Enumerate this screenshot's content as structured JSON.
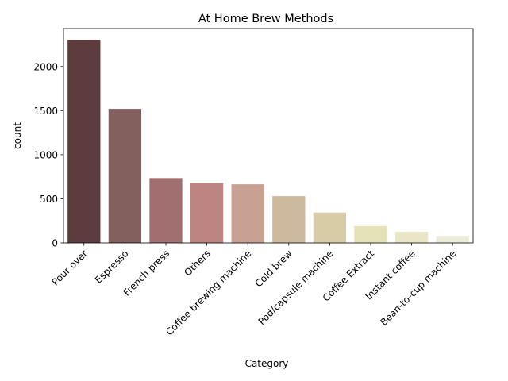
{
  "chart_data": {
    "type": "bar",
    "title": "At Home Brew Methods",
    "xlabel": "Category",
    "ylabel": "count",
    "ylim": [
      0,
      2430
    ],
    "yticks": [
      0,
      500,
      1000,
      1500,
      2000
    ],
    "grid": false,
    "categories": [
      "Pour over",
      "Espresso",
      "French press",
      "Others",
      "Coffee brewing machine",
      "Cold brew",
      "Pod/capsule machine",
      "Coffee Extract",
      "Instant coffee",
      "Bean-to-cup machine"
    ],
    "values": [
      2300,
      1520,
      735,
      680,
      665,
      530,
      345,
      190,
      125,
      80
    ],
    "colors": [
      "#5e3c3d",
      "#835f5d",
      "#a26f70",
      "#bc8582",
      "#c8a193",
      "#cdb99d",
      "#d8cca6",
      "#e5e2b6",
      "#e8e6c6",
      "#edecd8"
    ]
  }
}
